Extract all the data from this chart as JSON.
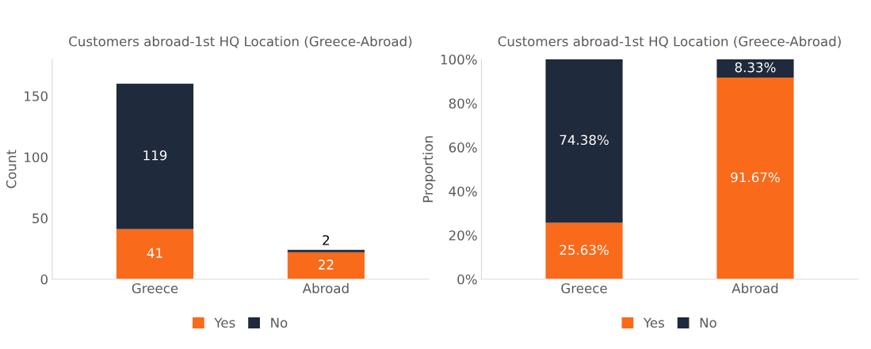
{
  "chart_data": [
    {
      "type": "bar",
      "title": "Customers abroad-1st HQ Location (Greece-Abroad)",
      "ylabel": "Count",
      "categories": [
        "Greece",
        "Abroad"
      ],
      "stacked": true,
      "series": [
        {
          "name": "Yes",
          "color": "#f96a1b",
          "values": [
            41,
            22
          ]
        },
        {
          "name": "No",
          "color": "#1f2a3c",
          "values": [
            119,
            2
          ]
        }
      ],
      "ylim": [
        0,
        180
      ],
      "yticks": [
        0,
        50,
        100,
        150
      ],
      "data_labels": true,
      "grid": false,
      "legend": "bottom"
    },
    {
      "type": "bar",
      "title": "Customers abroad-1st HQ Location (Greece-Abroad)",
      "ylabel": "Proportion",
      "categories": [
        "Greece",
        "Abroad"
      ],
      "stacked": true,
      "series": [
        {
          "name": "Yes",
          "color": "#f96a1b",
          "values": [
            25.63,
            91.67
          ],
          "value_labels": [
            "25.63%",
            "91.67%"
          ]
        },
        {
          "name": "No",
          "color": "#1f2a3c",
          "values": [
            74.38,
            8.33
          ],
          "value_labels": [
            "74.38%",
            "8.33%"
          ]
        }
      ],
      "ylim": [
        0,
        100
      ],
      "yticks": [
        {
          "value": 0,
          "label": "0%"
        },
        {
          "value": 20,
          "label": "20%"
        },
        {
          "value": 40,
          "label": "40%"
        },
        {
          "value": 60,
          "label": "60%"
        },
        {
          "value": 80,
          "label": "80%"
        },
        {
          "value": 100,
          "label": "100%"
        }
      ],
      "grid": false,
      "legend": "bottom"
    }
  ]
}
